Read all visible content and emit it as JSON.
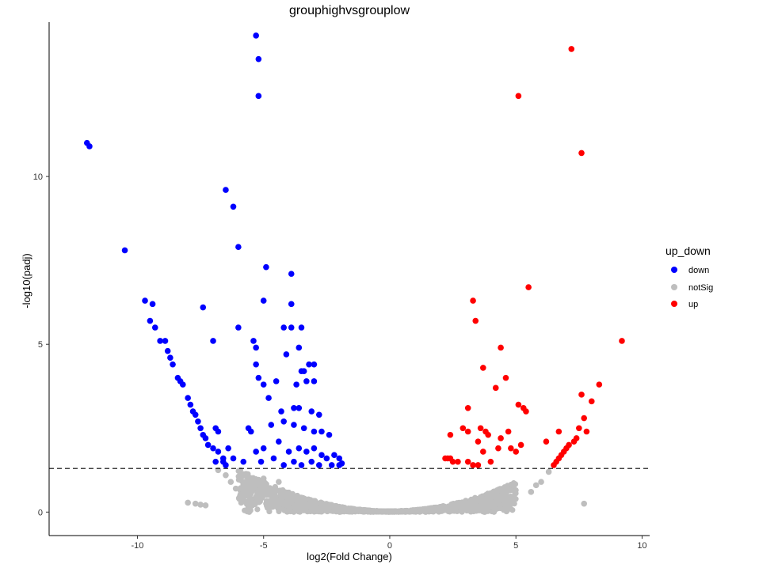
{
  "chart_data": {
    "type": "scatter",
    "title": "grouphighvsgrouplow",
    "xlabel": "log2(Fold Change)",
    "ylabel": "-log10(padj)",
    "xlim": [
      -13.5,
      10.3
    ],
    "ylim": [
      -0.7,
      14.6
    ],
    "xticks": [
      -10,
      -5,
      0,
      5,
      10
    ],
    "yticks": [
      0,
      5,
      10
    ],
    "threshold_y": 1.3,
    "threshold_style": "dashed",
    "grid": false,
    "legend": {
      "title": "up_down",
      "placement": "right",
      "entries": [
        "down",
        "notSig",
        "up"
      ]
    },
    "colors": {
      "down": "#0000ff",
      "notSig": "#bebebe",
      "up": "#ff0000"
    },
    "series": [
      {
        "name": "down",
        "points": [
          [
            -5.3,
            14.2
          ],
          [
            -5.2,
            13.5
          ],
          [
            -5.2,
            12.4
          ],
          [
            -12.0,
            11.0
          ],
          [
            -11.9,
            10.9
          ],
          [
            -6.5,
            9.6
          ],
          [
            -6.2,
            9.1
          ],
          [
            -6.0,
            7.9
          ],
          [
            -10.5,
            7.8
          ],
          [
            -4.9,
            7.3
          ],
          [
            -3.9,
            7.1
          ],
          [
            -9.7,
            6.3
          ],
          [
            -9.4,
            6.2
          ],
          [
            -5.0,
            6.3
          ],
          [
            -3.9,
            6.2
          ],
          [
            -7.4,
            6.1
          ],
          [
            -9.5,
            5.7
          ],
          [
            -9.3,
            5.5
          ],
          [
            -6.0,
            5.5
          ],
          [
            -3.5,
            5.5
          ],
          [
            -4.2,
            5.5
          ],
          [
            -3.9,
            5.5
          ],
          [
            -9.1,
            5.1
          ],
          [
            -8.9,
            5.1
          ],
          [
            -7.0,
            5.1
          ],
          [
            -5.4,
            5.1
          ],
          [
            -5.3,
            4.9
          ],
          [
            -3.6,
            4.9
          ],
          [
            -8.8,
            4.8
          ],
          [
            -8.7,
            4.6
          ],
          [
            -8.6,
            4.4
          ],
          [
            -5.3,
            4.4
          ],
          [
            -4.1,
            4.7
          ],
          [
            -3.5,
            4.2
          ],
          [
            -3.4,
            4.2
          ],
          [
            -3.2,
            4.4
          ],
          [
            -3.0,
            4.4
          ],
          [
            -8.4,
            4.0
          ],
          [
            -8.3,
            3.9
          ],
          [
            -8.2,
            3.8
          ],
          [
            -5.2,
            4.0
          ],
          [
            -5.0,
            3.8
          ],
          [
            -4.5,
            3.9
          ],
          [
            -3.7,
            3.8
          ],
          [
            -3.3,
            3.9
          ],
          [
            -3.0,
            3.9
          ],
          [
            -8.0,
            3.4
          ],
          [
            -7.9,
            3.2
          ],
          [
            -7.8,
            3.0
          ],
          [
            -7.7,
            2.9
          ],
          [
            -4.8,
            3.4
          ],
          [
            -4.3,
            3.0
          ],
          [
            -3.8,
            3.1
          ],
          [
            -3.6,
            3.1
          ],
          [
            -3.1,
            3.0
          ],
          [
            -2.8,
            2.9
          ],
          [
            -7.6,
            2.7
          ],
          [
            -7.5,
            2.5
          ],
          [
            -7.4,
            2.3
          ],
          [
            -7.3,
            2.2
          ],
          [
            -6.9,
            2.5
          ],
          [
            -6.8,
            2.4
          ],
          [
            -5.6,
            2.5
          ],
          [
            -5.5,
            2.4
          ],
          [
            -4.7,
            2.6
          ],
          [
            -4.2,
            2.7
          ],
          [
            -3.8,
            2.6
          ],
          [
            -3.4,
            2.5
          ],
          [
            -3.0,
            2.4
          ],
          [
            -2.7,
            2.4
          ],
          [
            -2.4,
            2.3
          ],
          [
            -7.2,
            2.0
          ],
          [
            -7.0,
            1.9
          ],
          [
            -6.8,
            1.8
          ],
          [
            -6.6,
            1.6
          ],
          [
            -6.4,
            1.9
          ],
          [
            -6.2,
            1.6
          ],
          [
            -5.3,
            1.8
          ],
          [
            -5.0,
            1.9
          ],
          [
            -4.4,
            2.1
          ],
          [
            -4.0,
            1.8
          ],
          [
            -3.6,
            1.9
          ],
          [
            -3.3,
            1.8
          ],
          [
            -3.0,
            1.9
          ],
          [
            -2.7,
            1.7
          ],
          [
            -2.5,
            1.6
          ],
          [
            -2.2,
            1.7
          ],
          [
            -2.0,
            1.6
          ],
          [
            -6.9,
            1.5
          ],
          [
            -6.6,
            1.5
          ],
          [
            -6.5,
            1.4
          ],
          [
            -5.8,
            1.5
          ],
          [
            -5.1,
            1.5
          ],
          [
            -4.6,
            1.6
          ],
          [
            -4.2,
            1.4
          ],
          [
            -3.8,
            1.5
          ],
          [
            -3.5,
            1.4
          ],
          [
            -3.1,
            1.5
          ],
          [
            -2.8,
            1.4
          ],
          [
            -2.3,
            1.4
          ],
          [
            -2.0,
            1.4
          ],
          [
            -1.9,
            1.45
          ]
        ]
      },
      {
        "name": "notSig",
        "points": [
          [
            -8.0,
            0.28
          ],
          [
            -7.7,
            0.25
          ],
          [
            -7.5,
            0.22
          ],
          [
            -7.3,
            0.2
          ],
          [
            -6.8,
            1.25
          ],
          [
            -6.5,
            1.1
          ],
          [
            -6.3,
            0.9
          ],
          [
            -6.1,
            0.7
          ],
          [
            -5.9,
            0.5
          ],
          [
            -5.8,
            0.6
          ],
          [
            -5.0,
            1.0
          ],
          [
            -4.8,
            0.7
          ],
          [
            -4.6,
            0.4
          ],
          [
            -4.4,
            0.9
          ],
          [
            7.7,
            0.25
          ],
          [
            6.3,
            1.2
          ],
          [
            6.0,
            0.9
          ],
          [
            5.8,
            0.8
          ],
          [
            5.6,
            0.6
          ]
        ]
      },
      {
        "name": "up",
        "points": [
          [
            7.2,
            13.8
          ],
          [
            5.1,
            12.4
          ],
          [
            7.6,
            10.7
          ],
          [
            5.5,
            6.7
          ],
          [
            3.3,
            6.3
          ],
          [
            3.4,
            5.7
          ],
          [
            9.2,
            5.1
          ],
          [
            4.4,
            4.9
          ],
          [
            3.7,
            4.3
          ],
          [
            4.6,
            4.0
          ],
          [
            4.2,
            3.7
          ],
          [
            8.3,
            3.8
          ],
          [
            7.6,
            3.5
          ],
          [
            8.0,
            3.3
          ],
          [
            5.1,
            3.2
          ],
          [
            5.3,
            3.1
          ],
          [
            3.1,
            3.1
          ],
          [
            5.4,
            3.0
          ],
          [
            7.7,
            2.8
          ],
          [
            2.9,
            2.5
          ],
          [
            3.1,
            2.4
          ],
          [
            3.6,
            2.5
          ],
          [
            3.8,
            2.4
          ],
          [
            3.9,
            2.3
          ],
          [
            4.7,
            2.4
          ],
          [
            2.4,
            2.3
          ],
          [
            3.5,
            2.1
          ],
          [
            4.4,
            2.2
          ],
          [
            5.2,
            2.0
          ],
          [
            6.2,
            2.1
          ],
          [
            6.7,
            2.4
          ],
          [
            7.5,
            2.5
          ],
          [
            7.8,
            2.4
          ],
          [
            4.3,
            1.9
          ],
          [
            4.8,
            1.9
          ],
          [
            5.0,
            1.8
          ],
          [
            7.1,
            2.0
          ],
          [
            7.3,
            2.1
          ],
          [
            7.4,
            2.2
          ],
          [
            2.2,
            1.6
          ],
          [
            2.3,
            1.6
          ],
          [
            2.4,
            1.6
          ],
          [
            2.5,
            1.5
          ],
          [
            2.7,
            1.5
          ],
          [
            3.1,
            1.5
          ],
          [
            3.3,
            1.4
          ],
          [
            3.5,
            1.4
          ],
          [
            3.7,
            1.8
          ],
          [
            4.0,
            1.5
          ],
          [
            6.6,
            1.5
          ],
          [
            6.7,
            1.6
          ],
          [
            6.8,
            1.7
          ],
          [
            6.9,
            1.8
          ],
          [
            7.0,
            1.9
          ],
          [
            6.5,
            1.4
          ]
        ]
      }
    ]
  }
}
